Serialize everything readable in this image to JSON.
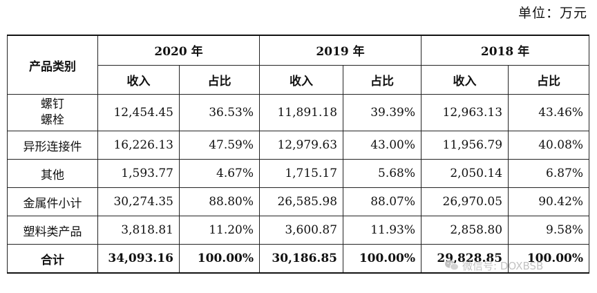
{
  "unit_label": "单位：万元",
  "header": {
    "category": "产品类别",
    "years": [
      "2020 年",
      "2019 年",
      "2018 年"
    ],
    "revenue": "收入",
    "share": "占比"
  },
  "rows": [
    {
      "category_line1": "螺钉",
      "category_line2": "螺栓",
      "values": [
        "12,454.45",
        "36.53%",
        "11,891.18",
        "39.39%",
        "12,963.13",
        "43.46%"
      ]
    },
    {
      "category": "异形连接件",
      "values": [
        "16,226.13",
        "47.59%",
        "12,979.63",
        "43.00%",
        "11,956.79",
        "40.08%"
      ]
    },
    {
      "category": "其他",
      "values": [
        "1,593.77",
        "4.67%",
        "1,715.17",
        "5.68%",
        "2,050.14",
        "6.87%"
      ]
    },
    {
      "category": "金属件小计",
      "values": [
        "30,274.35",
        "88.80%",
        "26,585.98",
        "88.07%",
        "26,970.05",
        "90.42%"
      ]
    },
    {
      "category": "塑料类产品",
      "values": [
        "3,818.81",
        "11.20%",
        "3,600.87",
        "11.93%",
        "2,858.80",
        "9.58%"
      ]
    }
  ],
  "total": {
    "category": "合计",
    "values": [
      "34,093.16",
      "100.00%",
      "30,186.85",
      "100.00%",
      "29,828.85",
      "100.00%"
    ]
  },
  "watermark": "微信号: DOXBSB"
}
